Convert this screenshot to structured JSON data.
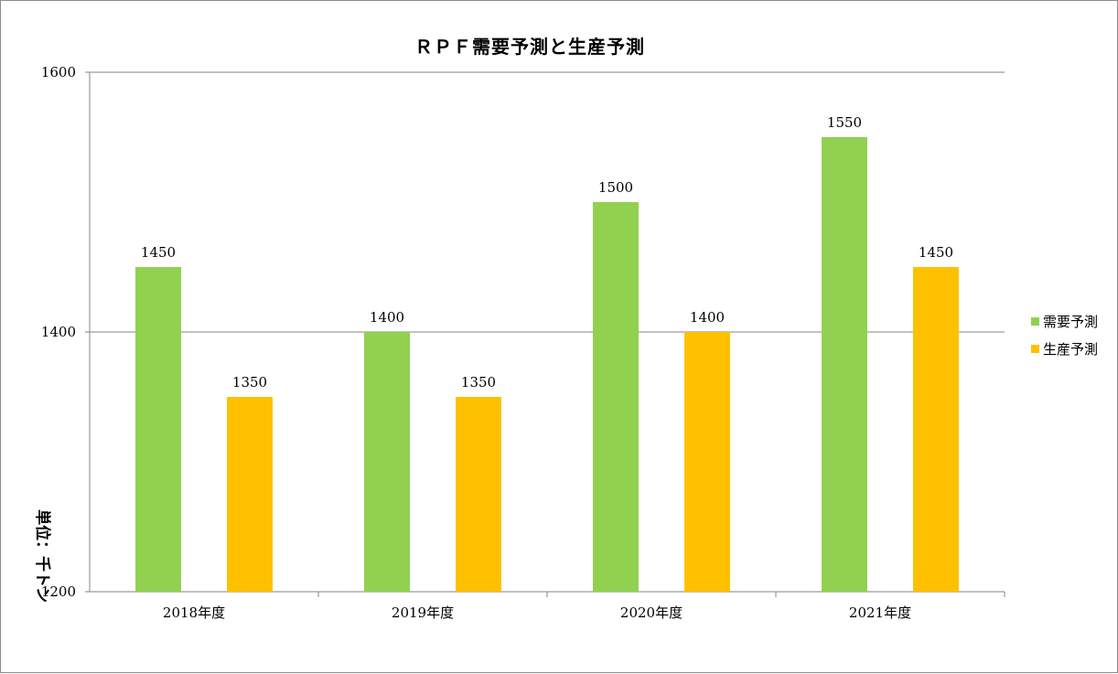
{
  "chart_data": {
    "type": "bar",
    "title": "ＲＰＦ需要予測と生産予測",
    "ylabel": "単位：千トン",
    "xlabel": "",
    "categories": [
      "2018年度",
      "2019年度",
      "2020年度",
      "2021年度"
    ],
    "series": [
      {
        "name": "需要予測",
        "color": "#92d050",
        "values": [
          1450,
          1400,
          1500,
          1550
        ]
      },
      {
        "name": "生産予測",
        "color": "#ffc000",
        "values": [
          1350,
          1350,
          1400,
          1450
        ]
      }
    ],
    "ylim": [
      1200,
      1600
    ],
    "yticks": [
      1200,
      1400,
      1600
    ],
    "grid": true,
    "legend": "right",
    "data_labels": true
  }
}
